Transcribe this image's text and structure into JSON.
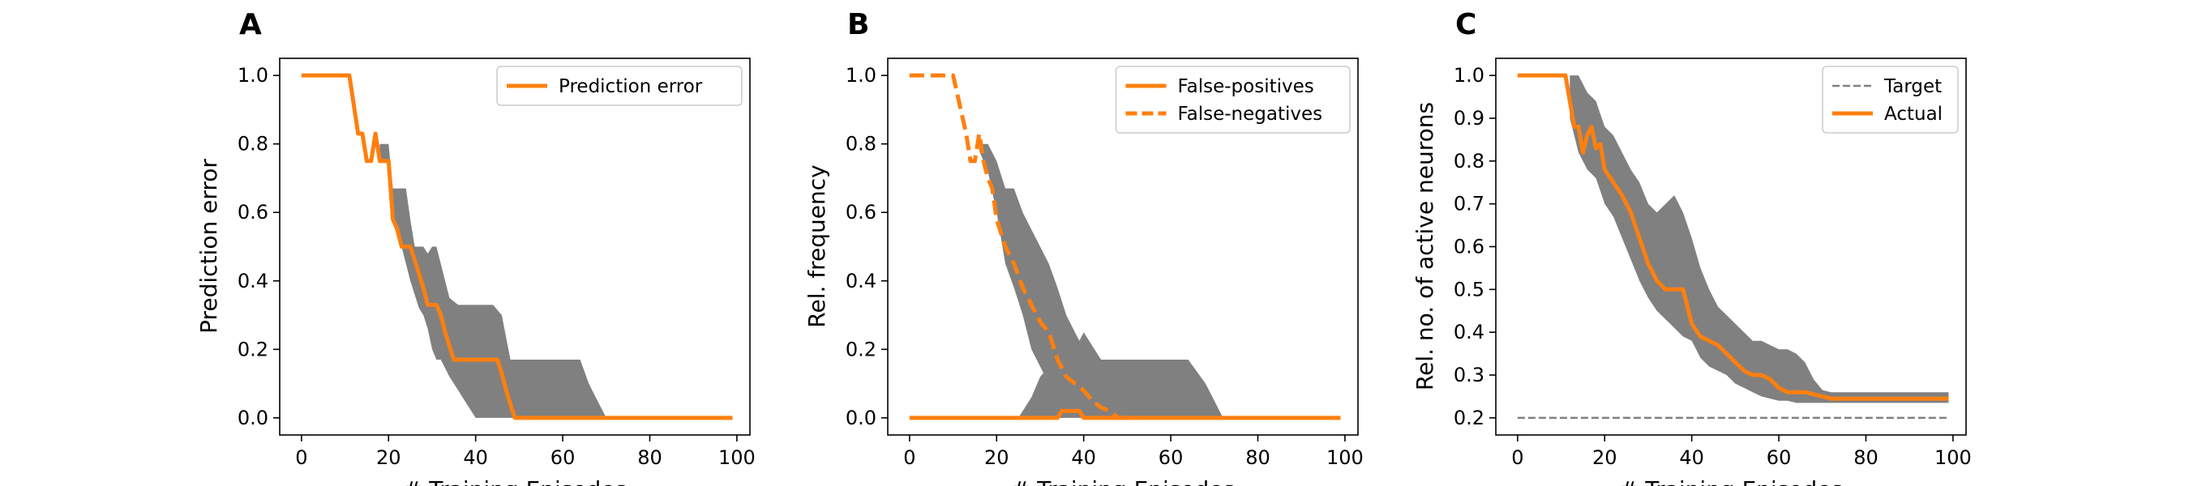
{
  "chart_data": [
    {
      "panel_letter": "A",
      "type": "line",
      "xlabel": "# Training Episodes",
      "ylabel": "Prediction error",
      "xlim": [
        -5,
        103
      ],
      "ylim": [
        -0.05,
        1.05
      ],
      "xticks": [
        0,
        20,
        40,
        60,
        80,
        100
      ],
      "yticks": [
        0.0,
        0.2,
        0.4,
        0.6,
        0.8,
        1.0
      ],
      "ytick_labels": [
        "0.0",
        "0.2",
        "0.4",
        "0.6",
        "0.8",
        "1.0"
      ],
      "legend_position": "top-right",
      "colors": {
        "line": "#ff7f0e",
        "band": "#808080",
        "axis": "#000000"
      },
      "series": [
        {
          "name": "Prediction error",
          "style": "solid",
          "x": [
            0,
            11,
            13,
            14,
            15,
            16,
            17,
            18,
            19,
            20,
            21,
            22,
            23,
            24,
            25,
            26,
            27,
            28,
            29,
            30,
            31,
            32,
            33,
            34,
            35,
            36,
            37,
            38,
            39,
            40,
            41,
            42,
            43,
            44,
            45,
            46,
            47,
            48,
            49,
            50,
            51,
            99
          ],
          "y": [
            1.0,
            1.0,
            0.83,
            0.83,
            0.75,
            0.75,
            0.83,
            0.75,
            0.75,
            0.75,
            0.58,
            0.55,
            0.5,
            0.5,
            0.5,
            0.46,
            0.42,
            0.38,
            0.33,
            0.33,
            0.33,
            0.3,
            0.25,
            0.21,
            0.17,
            0.17,
            0.17,
            0.17,
            0.17,
            0.17,
            0.17,
            0.17,
            0.17,
            0.17,
            0.17,
            0.13,
            0.08,
            0.04,
            0.0,
            0.0,
            0.0,
            0.0
          ],
          "band": {
            "x": [
              18,
              20,
              21,
              22,
              24,
              25,
              26,
              27,
              28,
              29,
              30,
              31,
              32,
              34,
              36,
              38,
              40,
              42,
              44,
              46,
              48,
              50,
              56,
              60,
              64,
              66,
              68,
              70,
              72
            ],
            "lower": [
              0.75,
              0.75,
              0.58,
              0.55,
              0.45,
              0.4,
              0.36,
              0.32,
              0.3,
              0.26,
              0.2,
              0.17,
              0.17,
              0.12,
              0.08,
              0.04,
              0.0,
              0.0,
              0.0,
              0.0,
              0.0,
              0.0,
              0.0,
              0.0,
              0.0,
              0.0,
              0.0,
              0.0,
              0.0
            ],
            "upper": [
              0.8,
              0.8,
              0.67,
              0.67,
              0.67,
              0.58,
              0.5,
              0.5,
              0.5,
              0.48,
              0.5,
              0.5,
              0.45,
              0.35,
              0.33,
              0.33,
              0.33,
              0.33,
              0.33,
              0.3,
              0.17,
              0.17,
              0.17,
              0.17,
              0.17,
              0.1,
              0.05,
              0.0,
              0.0
            ]
          }
        }
      ]
    },
    {
      "panel_letter": "B",
      "type": "line",
      "xlabel": "# Training Episodes",
      "ylabel": "Rel. frequency",
      "xlim": [
        -5,
        103
      ],
      "ylim": [
        -0.05,
        1.05
      ],
      "xticks": [
        0,
        20,
        40,
        60,
        80,
        100
      ],
      "yticks": [
        0.0,
        0.2,
        0.4,
        0.6,
        0.8,
        1.0
      ],
      "ytick_labels": [
        "0.0",
        "0.2",
        "0.4",
        "0.6",
        "0.8",
        "1.0"
      ],
      "legend_position": "top-right",
      "colors": {
        "line": "#ff7f0e",
        "band": "#808080",
        "axis": "#000000"
      },
      "series": [
        {
          "name": "False-positives",
          "style": "solid",
          "x": [
            0,
            34,
            35,
            39,
            40,
            99
          ],
          "y": [
            0.0,
            0.0,
            0.02,
            0.02,
            0.0,
            0.0
          ],
          "band": {
            "x": [
              25,
              28,
              30,
              32,
              34,
              36,
              38,
              40,
              44,
              48,
              52,
              56,
              60,
              64,
              68,
              70,
              72
            ],
            "lower": [
              0.0,
              0.0,
              0.0,
              0.0,
              0.0,
              0.0,
              0.0,
              0.0,
              0.0,
              0.0,
              0.0,
              0.0,
              0.0,
              0.0,
              0.0,
              0.0,
              0.0
            ],
            "upper": [
              0.0,
              0.06,
              0.12,
              0.15,
              0.17,
              0.17,
              0.2,
              0.25,
              0.17,
              0.17,
              0.17,
              0.17,
              0.17,
              0.17,
              0.1,
              0.05,
              0.0
            ]
          }
        },
        {
          "name": "False-negatives",
          "style": "dashed",
          "x": [
            0,
            10,
            13,
            14,
            15,
            16,
            17,
            18,
            19,
            20,
            22,
            24,
            26,
            28,
            30,
            32,
            34,
            36,
            38,
            40,
            42,
            44,
            46,
            48,
            50
          ],
          "y": [
            1.0,
            1.0,
            0.83,
            0.75,
            0.75,
            0.83,
            0.75,
            0.7,
            0.67,
            0.58,
            0.5,
            0.45,
            0.38,
            0.33,
            0.28,
            0.25,
            0.17,
            0.12,
            0.1,
            0.08,
            0.05,
            0.03,
            0.02,
            0.0,
            0.0
          ],
          "band": {
            "x": [
              16,
              18,
              20,
              22,
              24,
              26,
              28,
              30,
              32,
              34,
              36,
              38,
              40,
              42,
              44
            ],
            "lower": [
              0.78,
              0.72,
              0.6,
              0.45,
              0.38,
              0.3,
              0.2,
              0.15,
              0.1,
              0.06,
              0.04,
              0.02,
              0.0,
              0.0,
              0.0
            ],
            "upper": [
              0.8,
              0.8,
              0.75,
              0.67,
              0.67,
              0.6,
              0.55,
              0.5,
              0.45,
              0.38,
              0.3,
              0.25,
              0.2,
              0.17,
              0.1
            ]
          }
        }
      ]
    },
    {
      "panel_letter": "C",
      "type": "line",
      "xlabel": "# Training Episodes",
      "ylabel": "Rel. no. of active neurons",
      "xlim": [
        -5,
        103
      ],
      "ylim": [
        0.16,
        1.04
      ],
      "xticks": [
        0,
        20,
        40,
        60,
        80,
        100
      ],
      "yticks": [
        0.2,
        0.3,
        0.4,
        0.5,
        0.6,
        0.7,
        0.8,
        0.9,
        1.0
      ],
      "ytick_labels": [
        "0.2",
        "0.3",
        "0.4",
        "0.5",
        "0.6",
        "0.7",
        "0.8",
        "0.9",
        "1.0"
      ],
      "legend_position": "top-right",
      "colors": {
        "line": "#ff7f0e",
        "band": "#808080",
        "target": "#808080",
        "axis": "#000000"
      },
      "series": [
        {
          "name": "Target",
          "style": "dashed-thin",
          "x": [
            0,
            99
          ],
          "y": [
            0.2,
            0.2
          ]
        },
        {
          "name": "Actual",
          "style": "solid",
          "x": [
            0,
            11,
            13,
            14,
            15,
            16,
            17,
            18,
            19,
            20,
            22,
            24,
            26,
            28,
            30,
            32,
            34,
            36,
            38,
            40,
            42,
            44,
            46,
            48,
            50,
            52,
            54,
            56,
            58,
            60,
            62,
            64,
            66,
            68,
            70,
            72,
            74,
            99
          ],
          "y": [
            1.0,
            1.0,
            0.88,
            0.88,
            0.82,
            0.86,
            0.88,
            0.83,
            0.84,
            0.78,
            0.75,
            0.72,
            0.68,
            0.62,
            0.56,
            0.52,
            0.5,
            0.5,
            0.5,
            0.42,
            0.39,
            0.38,
            0.37,
            0.35,
            0.33,
            0.31,
            0.3,
            0.3,
            0.29,
            0.27,
            0.26,
            0.26,
            0.26,
            0.255,
            0.25,
            0.245,
            0.245,
            0.245
          ],
          "band": {
            "x": [
              12,
              14,
              16,
              18,
              20,
              22,
              24,
              26,
              28,
              30,
              32,
              34,
              36,
              38,
              40,
              42,
              44,
              46,
              48,
              50,
              52,
              54,
              56,
              58,
              60,
              62,
              64,
              66,
              68,
              70,
              72,
              74,
              99
            ],
            "lower": [
              0.9,
              0.82,
              0.78,
              0.76,
              0.7,
              0.67,
              0.62,
              0.57,
              0.52,
              0.48,
              0.45,
              0.43,
              0.41,
              0.39,
              0.38,
              0.34,
              0.32,
              0.31,
              0.3,
              0.28,
              0.27,
              0.26,
              0.25,
              0.245,
              0.24,
              0.24,
              0.235,
              0.235,
              0.235,
              0.235,
              0.235,
              0.235,
              0.235
            ],
            "upper": [
              1.0,
              1.0,
              0.96,
              0.94,
              0.88,
              0.86,
              0.82,
              0.78,
              0.75,
              0.7,
              0.68,
              0.7,
              0.72,
              0.68,
              0.62,
              0.55,
              0.5,
              0.46,
              0.44,
              0.42,
              0.4,
              0.38,
              0.38,
              0.37,
              0.36,
              0.36,
              0.35,
              0.33,
              0.29,
              0.265,
              0.26,
              0.26,
              0.26
            ]
          }
        }
      ]
    }
  ]
}
